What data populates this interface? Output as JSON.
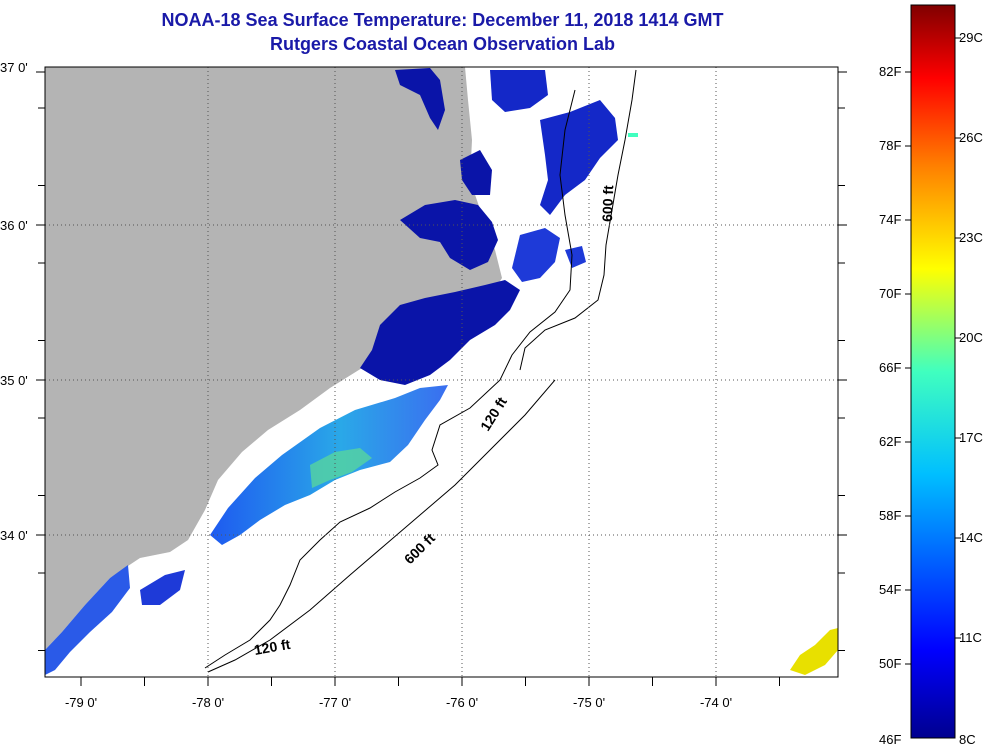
{
  "title": {
    "line1": "NOAA-18 Sea Surface Temperature:  December 11, 2018 1414 GMT",
    "line2": "Rutgers Coastal Ocean Observation Lab"
  },
  "map": {
    "lat_labels": [
      "37 0'",
      "36 0'",
      "35 0'",
      "34 0'"
    ],
    "lon_labels": [
      "-79 0'",
      "-78 0'",
      "-77 0'",
      "-76 0'",
      "-75 0'",
      "-74 0'"
    ],
    "contours": [
      "600 ft",
      "120 ft",
      "600 ft",
      "120 ft"
    ],
    "colors": {
      "land": "#b4b4b4",
      "ocean_no_data": "#ffffff",
      "cold": "#0000c8",
      "mid": "#2aa8e8",
      "warm": "#e8e000"
    }
  },
  "colorbar": {
    "f_labels": [
      "82F",
      "78F",
      "74F",
      "70F",
      "66F",
      "62F",
      "58F",
      "54F",
      "50F",
      "46F"
    ],
    "c_labels": [
      "29C",
      "26C",
      "23C",
      "20C",
      "17C",
      "14C",
      "11C",
      "8C"
    ],
    "range_c": [
      8,
      31
    ],
    "colors": [
      "#00008f",
      "#0000ff",
      "#00bfff",
      "#40ffbf",
      "#ffff00",
      "#ff8000",
      "#ff0000",
      "#800000"
    ]
  }
}
